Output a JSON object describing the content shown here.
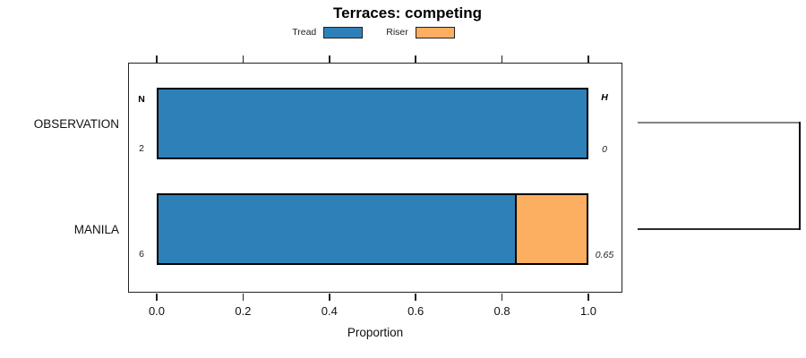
{
  "chart_data": {
    "type": "bar",
    "orientation": "horizontal",
    "stacked": true,
    "title": "Terraces: competing",
    "xlabel": "Proportion",
    "xlim": [
      0,
      1
    ],
    "ticks": [
      0,
      0.2,
      0.4,
      0.6,
      0.8,
      1
    ],
    "tick_labels": [
      "0.0",
      "0.2",
      "0.4",
      "0.6",
      "0.8",
      "1.0"
    ],
    "legend_position": "top",
    "legend": [
      {
        "name": "Tread",
        "color": "#2e81b8"
      },
      {
        "name": "Riser",
        "color": "#fcae61"
      }
    ],
    "categories": [
      "OBSERVATION",
      "MANILA"
    ],
    "series": [
      {
        "name": "Tread",
        "color": "#2e81b8",
        "values": [
          1.0,
          0.833
        ]
      },
      {
        "name": "Riser",
        "color": "#fcae61",
        "values": [
          0.0,
          0.167
        ]
      }
    ],
    "annotations": {
      "left_header": "N",
      "right_header": "H",
      "n_values": [
        "2",
        "6"
      ],
      "h_values": [
        "0",
        "0.65"
      ]
    },
    "colors": {
      "tread": "#2e81b8",
      "riser": "#fcae61",
      "bar_outline": "#000000",
      "frame": "#222222",
      "link_gray": "#848484",
      "link_dark": "#2d2d2d"
    }
  }
}
